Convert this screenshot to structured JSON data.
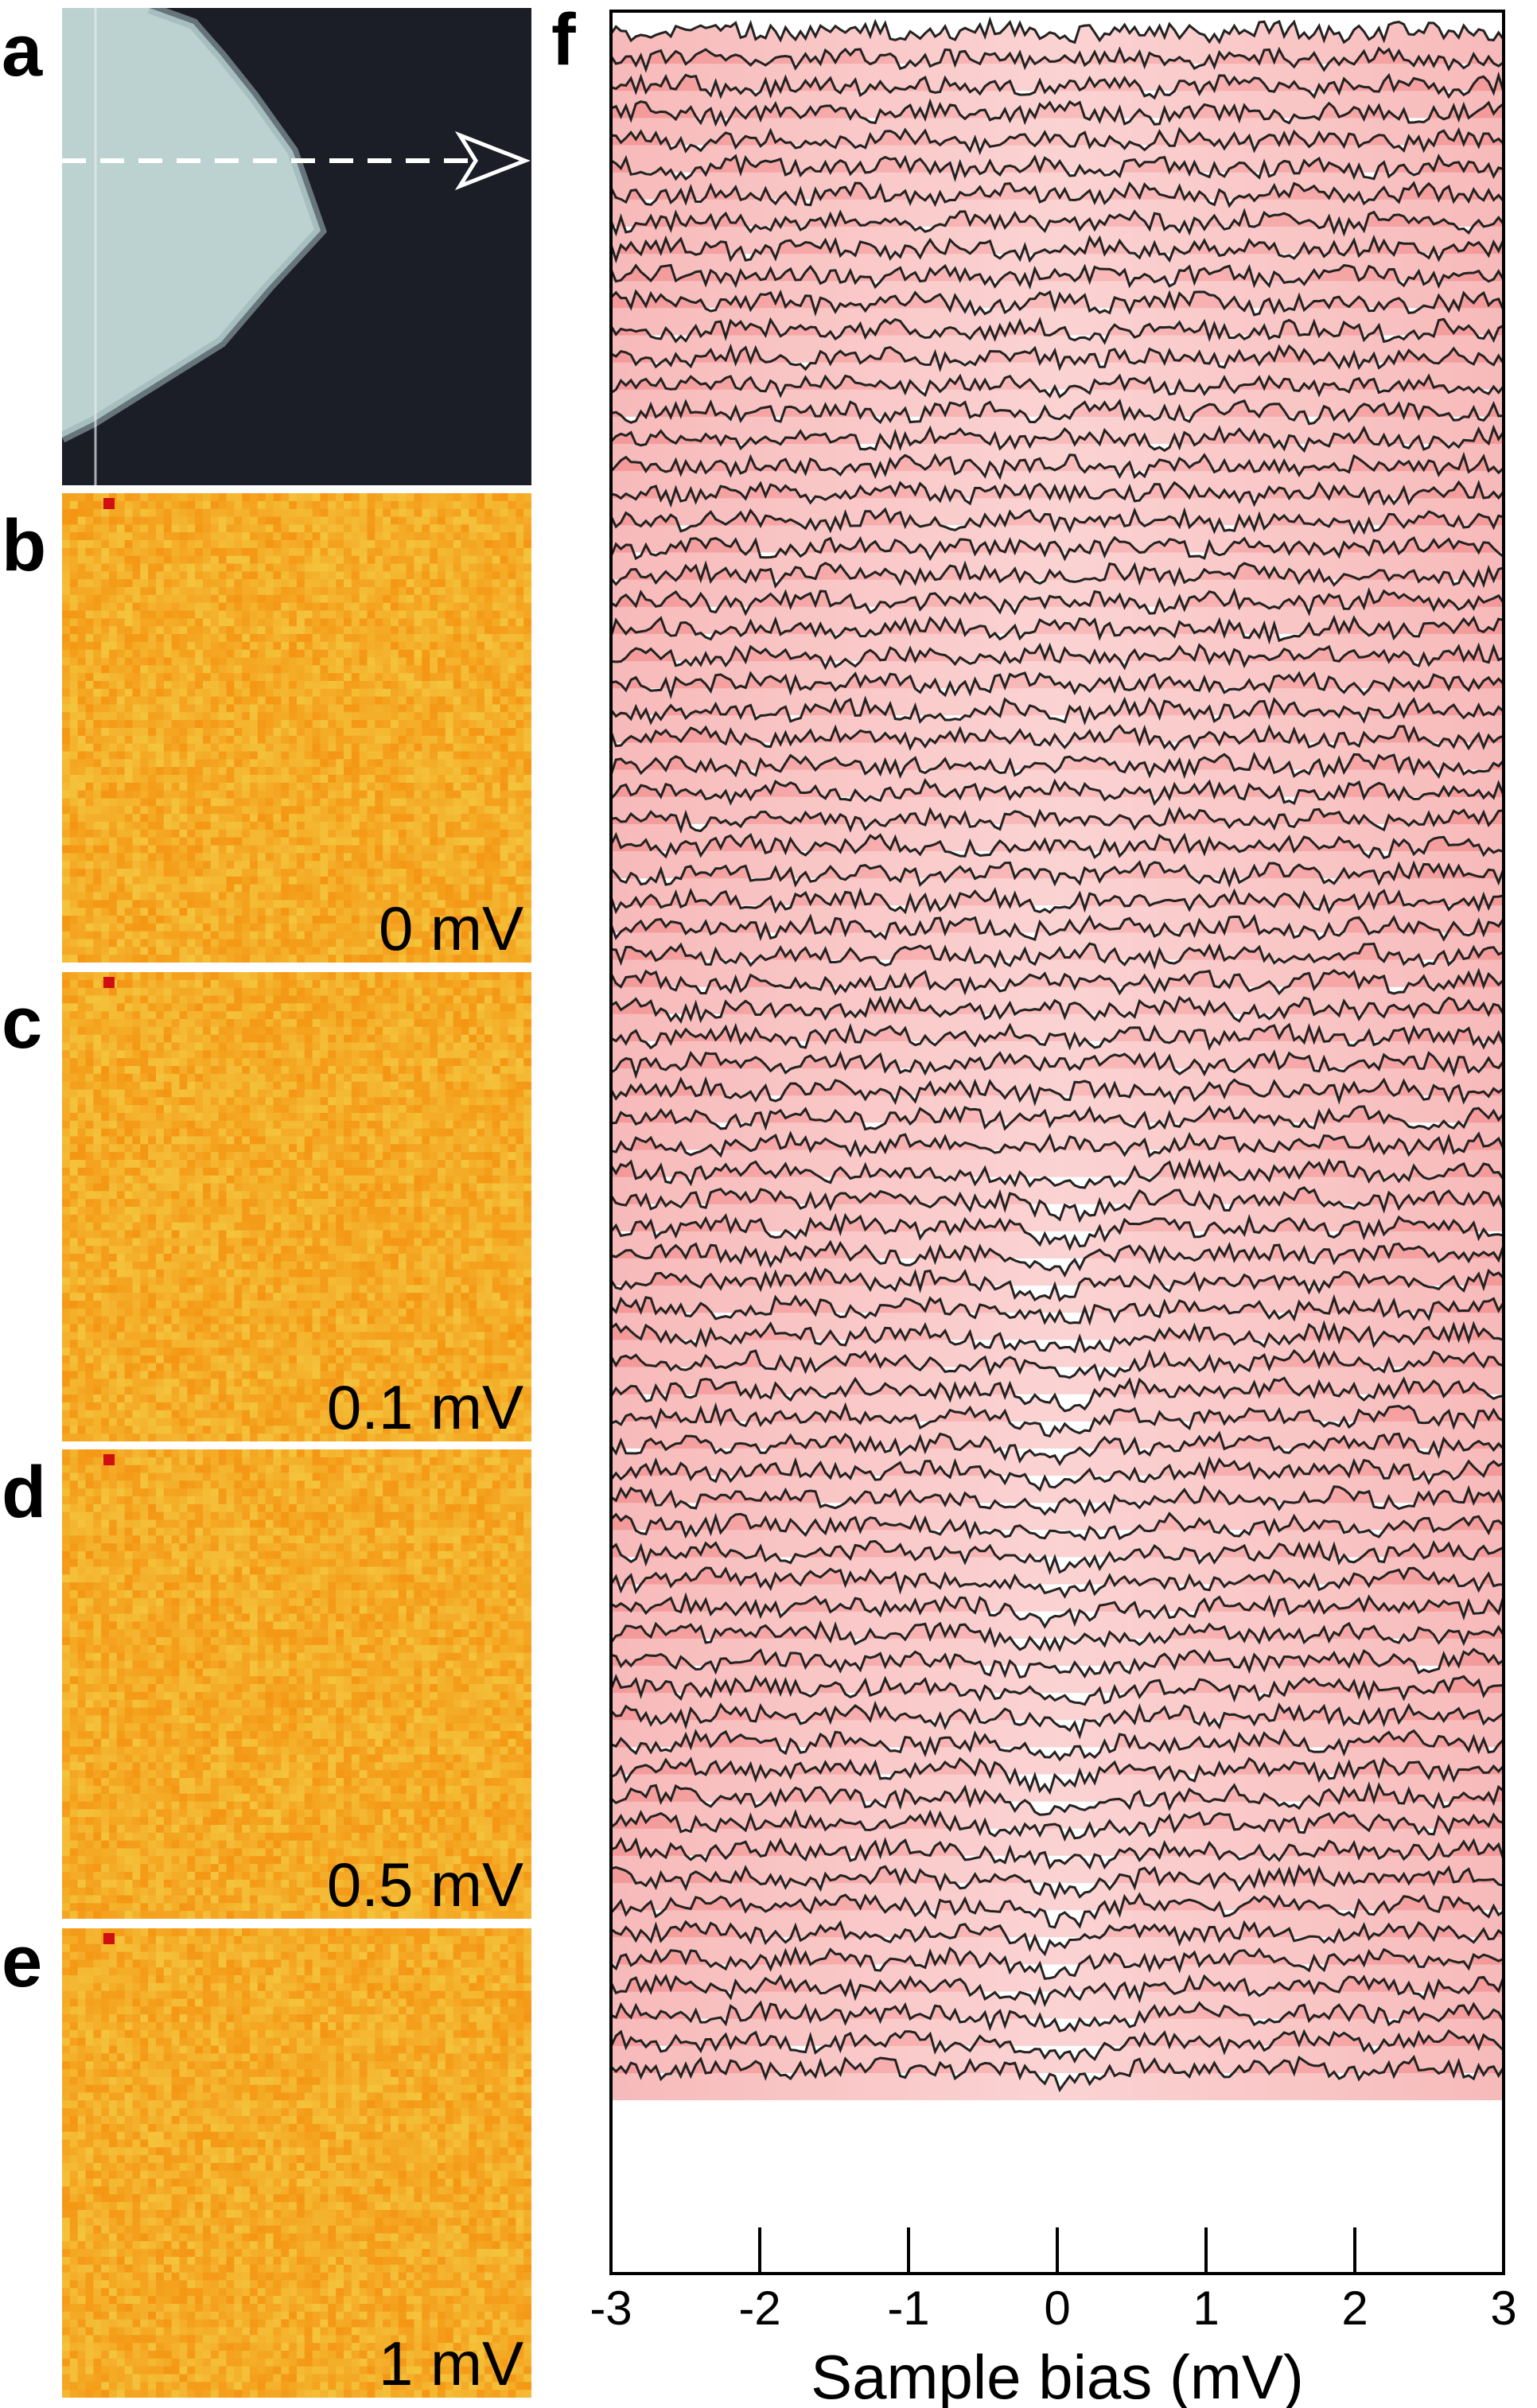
{
  "panels": {
    "a": {
      "letter": "a"
    },
    "b": {
      "letter": "b",
      "energy": "0 mV"
    },
    "c": {
      "letter": "c",
      "energy": "0.1 mV"
    },
    "d": {
      "letter": "d",
      "energy": "0.5 mV"
    },
    "e": {
      "letter": "e",
      "energy": "1 mV"
    },
    "f": {
      "letter": "f"
    }
  },
  "colors": {
    "topo_background": "#1b1d27",
    "topo_island": "#bcd2d0",
    "map_orange": "#f4a41e",
    "map_defect": "#d01010",
    "spectra_fill": "#f07a7a",
    "spectra_line": "#222222"
  },
  "chart_data": {
    "type": "line",
    "description_kind": "waterfall of stacked dI/dV spectra",
    "xlabel": "Sample bias (mV)",
    "ylabel": "",
    "xlim": [
      -3,
      3
    ],
    "xticks": [
      "-3",
      "-2",
      "-1",
      "0",
      "1",
      "2",
      "3"
    ],
    "xtick_values": [
      -3,
      -2,
      -1,
      0,
      1,
      2,
      3
    ],
    "n_spectra": 76,
    "grid": false,
    "legend": "none"
  }
}
